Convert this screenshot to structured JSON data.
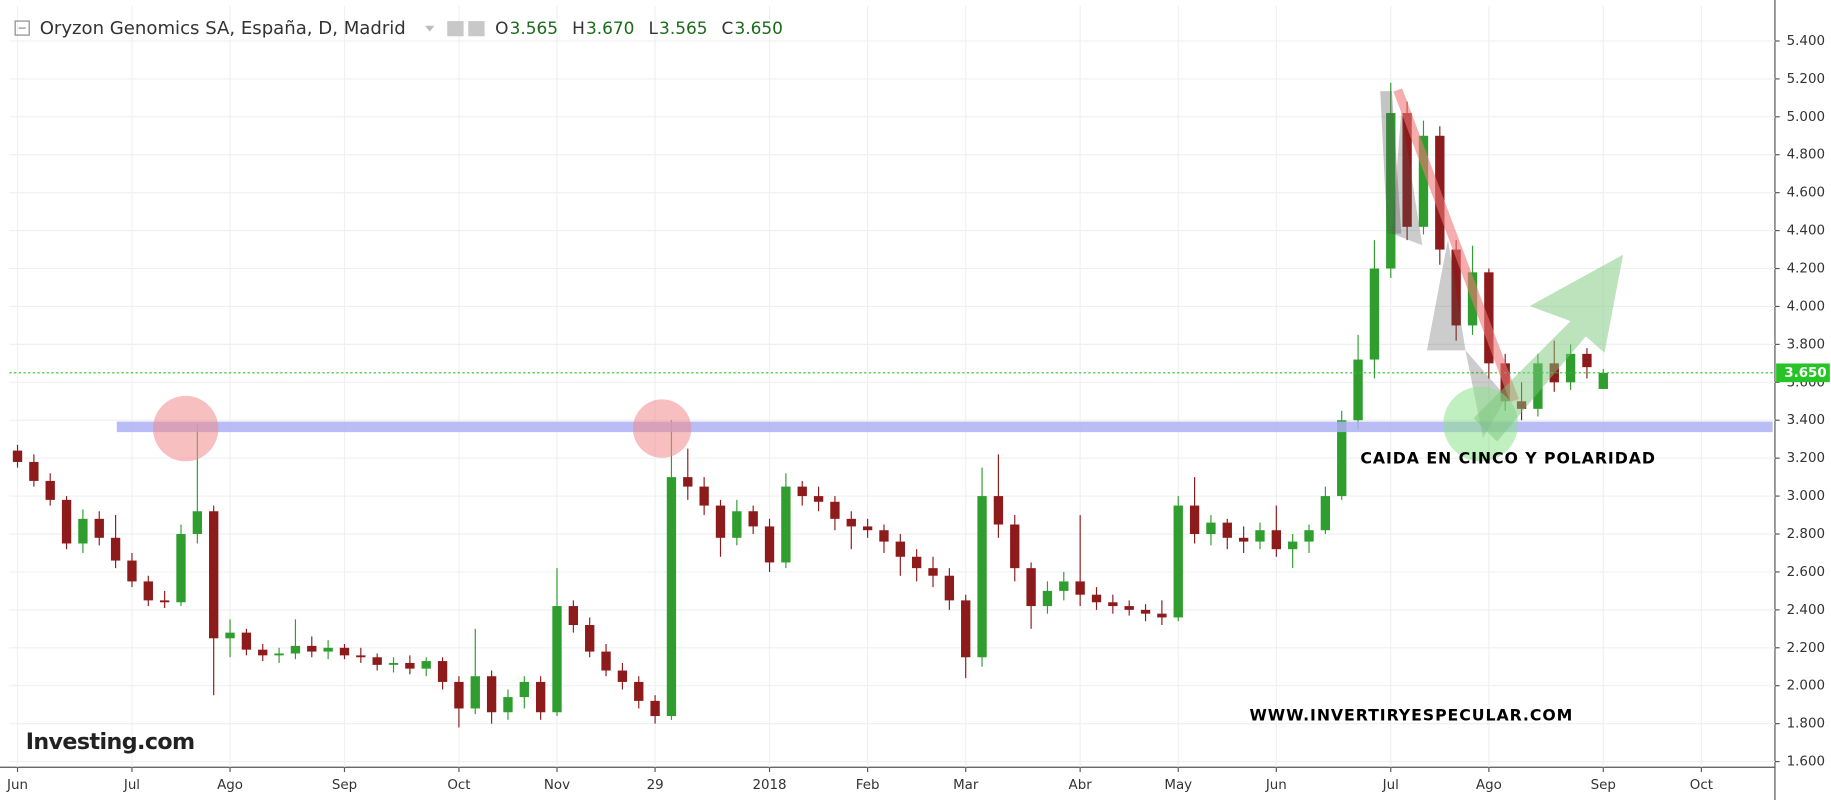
{
  "chart_data": {
    "type": "candlestick",
    "title": "Oryzon Genomics SA, España, D, Madrid",
    "ohlc": [
      {
        "key": "O",
        "value": "3.565"
      },
      {
        "key": "H",
        "value": "3.670"
      },
      {
        "key": "L",
        "value": "3.565"
      },
      {
        "key": "C",
        "value": "3.650"
      }
    ],
    "annotations": [
      "CAIDA EN CINCO Y POLARIDAD",
      "WWW.INVERTIRYESPECULAR.COM"
    ],
    "watermark": "Investing.com",
    "up_color": "#2f9e2f",
    "down_color": "#8e1b1b",
    "last_price": {
      "value": 3.65,
      "label": "3.650"
    },
    "ylim": [
      1.57,
      5.585
    ],
    "yticks": [
      {
        "value": 1.6,
        "label": "1.600"
      },
      {
        "value": 1.8,
        "label": "1.800"
      },
      {
        "value": 2.0,
        "label": "2.000"
      },
      {
        "value": 2.2,
        "label": "2.200"
      },
      {
        "value": 2.4,
        "label": "2.400"
      },
      {
        "value": 2.6,
        "label": "2.600"
      },
      {
        "value": 2.8,
        "label": "2.800"
      },
      {
        "value": 3.0,
        "label": "3.000"
      },
      {
        "value": 3.2,
        "label": "3.200"
      },
      {
        "value": 3.4,
        "label": "3.400"
      },
      {
        "value": 3.6,
        "label": "3.600"
      },
      {
        "value": 3.8,
        "label": "3.800"
      },
      {
        "value": 4.0,
        "label": "4.000"
      },
      {
        "value": 4.2,
        "label": "4.200"
      },
      {
        "value": 4.4,
        "label": "4.400"
      },
      {
        "value": 4.6,
        "label": "4.600"
      },
      {
        "value": 4.8,
        "label": "4.800"
      },
      {
        "value": 5.0,
        "label": "5.000"
      },
      {
        "value": 5.2,
        "label": "5.200"
      },
      {
        "value": 5.4,
        "label": "5.400"
      }
    ],
    "grid": true,
    "categories": [
      "Jun",
      null,
      null,
      null,
      null,
      null,
      null,
      "Jul",
      null,
      null,
      null,
      null,
      null,
      "Ago",
      null,
      null,
      null,
      null,
      null,
      null,
      "Sep",
      null,
      null,
      null,
      null,
      null,
      null,
      "Oct",
      null,
      null,
      null,
      null,
      null,
      "Nov",
      null,
      null,
      null,
      null,
      null,
      "29",
      null,
      null,
      null,
      null,
      null,
      null,
      "2018",
      null,
      null,
      null,
      null,
      null,
      "Feb",
      null,
      null,
      null,
      null,
      null,
      "Mar",
      null,
      null,
      null,
      null,
      null,
      null,
      "Abr",
      null,
      null,
      null,
      null,
      null,
      "May",
      null,
      null,
      null,
      null,
      null,
      "Jun",
      null,
      null,
      null,
      null,
      null,
      null,
      "Jul",
      null,
      null,
      null,
      null,
      null,
      "Ago",
      null,
      null,
      null,
      null,
      null,
      null,
      "Sep",
      null,
      null,
      null,
      null,
      null,
      "Oct",
      null,
      null,
      null,
      null
    ],
    "open": [
      3.24,
      3.18,
      3.08,
      2.98,
      2.75,
      2.88,
      2.78,
      2.66,
      2.55,
      2.45,
      2.44,
      2.8,
      2.92,
      2.25,
      2.28,
      2.19,
      2.16,
      2.17,
      2.21,
      2.18,
      2.2,
      2.16,
      2.15,
      2.11,
      2.12,
      2.09,
      2.13,
      2.02,
      1.88,
      2.05,
      1.86,
      1.94,
      2.02,
      1.86,
      2.42,
      2.32,
      2.18,
      2.08,
      2.02,
      1.92,
      1.84,
      3.1,
      3.05,
      2.95,
      2.78,
      2.92,
      2.84,
      2.65,
      3.05,
      3.0,
      2.97,
      2.88,
      2.84,
      2.82,
      2.76,
      2.68,
      2.62,
      2.58,
      2.45,
      2.15,
      3.0,
      2.85,
      2.62,
      2.42,
      2.5,
      2.55,
      2.48,
      2.44,
      2.42,
      2.4,
      2.38,
      2.36,
      2.95,
      2.8,
      2.86,
      2.78,
      2.76,
      2.82,
      2.72,
      2.76,
      2.82,
      3.0,
      3.4,
      3.72,
      4.2,
      5.02,
      4.42,
      4.9,
      4.3,
      3.9,
      4.18,
      3.7,
      3.5,
      3.46,
      3.7,
      3.6,
      3.75,
      3.565,
      null,
      null,
      null,
      null,
      null,
      null,
      null,
      null,
      null,
      null
    ],
    "high": [
      3.27,
      3.22,
      3.12,
      3.0,
      2.93,
      2.92,
      2.9,
      2.7,
      2.58,
      2.5,
      2.85,
      3.38,
      2.95,
      2.35,
      2.3,
      2.22,
      2.2,
      2.35,
      2.26,
      2.24,
      2.22,
      2.2,
      2.17,
      2.15,
      2.16,
      2.15,
      2.15,
      2.05,
      2.3,
      2.08,
      1.98,
      2.05,
      2.05,
      2.62,
      2.45,
      2.36,
      2.22,
      2.12,
      2.05,
      1.95,
      3.4,
      3.25,
      3.1,
      2.98,
      2.98,
      2.95,
      2.88,
      3.12,
      3.08,
      3.05,
      3.0,
      2.92,
      2.88,
      2.85,
      2.8,
      2.72,
      2.68,
      2.62,
      2.48,
      3.15,
      3.22,
      2.9,
      2.65,
      2.55,
      2.6,
      2.9,
      2.52,
      2.48,
      2.45,
      2.43,
      2.45,
      3.0,
      3.1,
      2.9,
      2.88,
      2.84,
      2.86,
      2.95,
      2.8,
      2.85,
      3.05,
      3.45,
      3.85,
      4.35,
      5.18,
      5.08,
      4.98,
      4.95,
      4.35,
      4.32,
      4.2,
      3.75,
      3.6,
      3.75,
      3.82,
      3.8,
      3.78,
      3.67,
      null,
      null,
      null,
      null,
      null,
      null,
      null,
      null,
      null,
      null
    ],
    "low": [
      3.15,
      3.05,
      2.95,
      2.72,
      2.7,
      2.74,
      2.62,
      2.52,
      2.42,
      2.41,
      2.42,
      2.75,
      1.95,
      2.15,
      2.16,
      2.13,
      2.12,
      2.14,
      2.15,
      2.14,
      2.14,
      2.12,
      2.08,
      2.07,
      2.06,
      2.05,
      1.98,
      1.78,
      1.85,
      1.8,
      1.82,
      1.88,
      1.82,
      1.84,
      2.28,
      2.15,
      2.05,
      1.98,
      1.88,
      1.8,
      1.82,
      2.98,
      2.9,
      2.68,
      2.74,
      2.8,
      2.6,
      2.62,
      2.95,
      2.92,
      2.82,
      2.72,
      2.78,
      2.7,
      2.58,
      2.55,
      2.52,
      2.4,
      2.04,
      2.1,
      2.78,
      2.55,
      2.3,
      2.38,
      2.45,
      2.42,
      2.4,
      2.38,
      2.37,
      2.34,
      2.32,
      2.34,
      2.75,
      2.74,
      2.72,
      2.7,
      2.72,
      2.68,
      2.62,
      2.7,
      2.8,
      2.98,
      3.35,
      3.62,
      4.15,
      4.35,
      4.38,
      4.22,
      3.82,
      3.85,
      3.62,
      3.45,
      3.4,
      3.42,
      3.55,
      3.56,
      3.62,
      3.565,
      null,
      null,
      null,
      null,
      null,
      null,
      null,
      null,
      null,
      null
    ],
    "close": [
      3.18,
      3.08,
      2.98,
      2.75,
      2.88,
      2.78,
      2.66,
      2.55,
      2.45,
      2.44,
      2.8,
      2.92,
      2.25,
      2.28,
      2.19,
      2.16,
      2.17,
      2.21,
      2.18,
      2.2,
      2.16,
      2.15,
      2.11,
      2.12,
      2.09,
      2.13,
      2.02,
      1.88,
      2.05,
      1.86,
      1.94,
      2.02,
      1.86,
      2.42,
      2.32,
      2.18,
      2.08,
      2.02,
      1.92,
      1.84,
      3.1,
      3.05,
      2.95,
      2.78,
      2.92,
      2.84,
      2.65,
      3.05,
      3.0,
      2.97,
      2.88,
      2.84,
      2.82,
      2.76,
      2.68,
      2.62,
      2.58,
      2.45,
      2.15,
      3.0,
      2.85,
      2.62,
      2.42,
      2.5,
      2.55,
      2.48,
      2.44,
      2.42,
      2.4,
      2.38,
      2.36,
      2.95,
      2.8,
      2.86,
      2.78,
      2.76,
      2.82,
      2.72,
      2.76,
      2.82,
      3.0,
      3.4,
      3.72,
      4.2,
      5.02,
      4.42,
      4.9,
      4.3,
      3.9,
      4.18,
      3.7,
      3.5,
      3.46,
      3.7,
      3.6,
      3.75,
      3.68,
      3.65,
      null,
      null,
      null,
      null,
      null,
      null,
      null,
      null,
      null,
      null
    ]
  }
}
